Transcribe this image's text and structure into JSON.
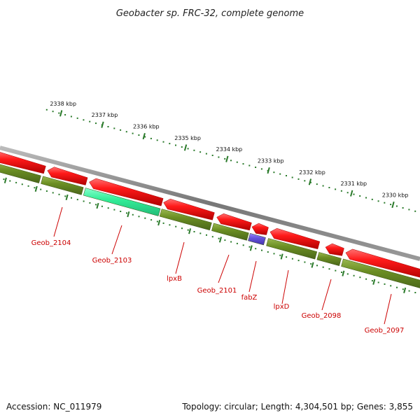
{
  "title": "Geobacter sp. FRC-32, complete genome",
  "footer": {
    "accession": "Accession: NC_011979",
    "summary": "Topology: circular; Length: 4,304,501 bp; Genes: 3,855"
  },
  "scale_labels": [
    "2338 kbp",
    "2337 kbp",
    "2336 kbp",
    "2335 kbp",
    "2334 kbp",
    "2333 kbp",
    "2332 kbp",
    "2331 kbp",
    "2330 kbp"
  ],
  "gene_labels": [
    "Geob_2104",
    "Geob_2103",
    "lpxB",
    "Geob_2101",
    "fabZ",
    "lpxD",
    "Geob_2098",
    "Geob_2097"
  ],
  "colors": {
    "cds": "#ee1111",
    "gene": "#6b8e23",
    "highlight_gene": "#33ee99",
    "fabZ": "#6655dd",
    "backbone": "#888888",
    "ticks": "#2a7a2a",
    "labels": "#cc0000"
  }
}
